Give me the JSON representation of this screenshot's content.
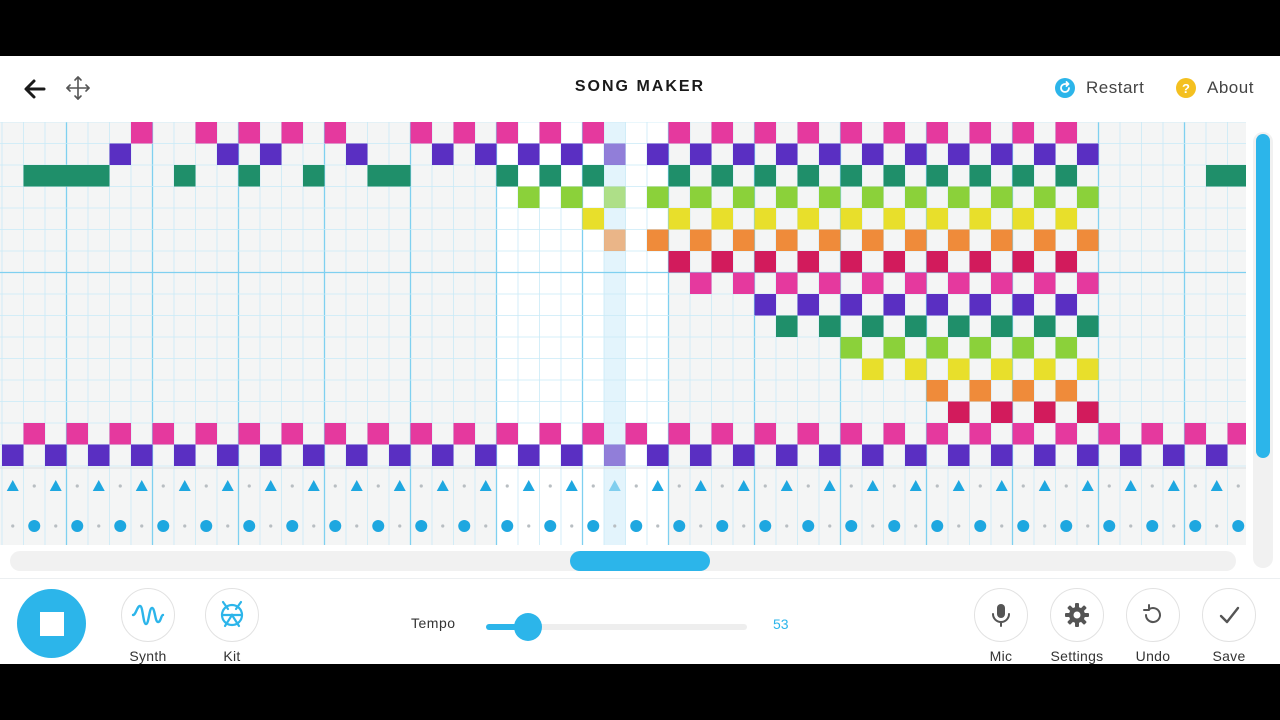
{
  "header": {
    "title": "SONG MAKER",
    "restart_label": "Restart",
    "about_label": "About",
    "about_glyph": "?"
  },
  "colors": {
    "accent": "#2cb5ea",
    "about_icon": "#f4c020",
    "bg_light": "#f4f5f5",
    "bg_white": "#ffffff",
    "grid_line": "#c9eaf7",
    "beat_line": "#7fd0f0",
    "playhead": "#e3f4fc",
    "percussion_mark": "#1ea7e0"
  },
  "melody": {
    "columns": 58,
    "rows": 14,
    "highlight_column": 28,
    "pitch_colors": [
      "#e5399e",
      "#5a2fc2",
      "#1f8f6a",
      "#8bd13a",
      "#e8df2b",
      "#ef8b3a",
      "#d21b5c",
      "#e5399e",
      "#5a2fc2",
      "#1f8f6a",
      "#8bd13a",
      "#e8df2b",
      "#ef8b3a",
      "#d21b5c"
    ],
    "notes": [
      [
        0,
        [
          6,
          9,
          11,
          13,
          15,
          19,
          21,
          23,
          25,
          27,
          31,
          33,
          35,
          37,
          39,
          41,
          43,
          45,
          47,
          49
        ]
      ],
      [
        1,
        [
          5,
          10,
          12,
          16,
          20,
          22,
          24,
          26,
          28,
          30,
          32,
          34,
          36,
          38,
          40,
          42,
          44,
          46,
          48,
          50
        ]
      ],
      [
        2,
        [
          1,
          2,
          3,
          4,
          8,
          11,
          14,
          17,
          18,
          23,
          25,
          27,
          31,
          33,
          35,
          37,
          39,
          41,
          43,
          45,
          47,
          49,
          56,
          57
        ]
      ],
      [
        3,
        [
          24,
          26,
          28,
          30,
          32,
          34,
          36,
          38,
          40,
          42,
          44,
          46,
          48,
          50
        ]
      ],
      [
        4,
        [
          27,
          31,
          33,
          35,
          37,
          39,
          41,
          43,
          45,
          47,
          49
        ]
      ],
      [
        5,
        [
          28,
          30,
          32,
          34,
          36,
          38,
          40,
          42,
          44,
          46,
          48,
          50
        ]
      ],
      [
        6,
        [
          31,
          33,
          35,
          37,
          39,
          41,
          43,
          45,
          47,
          49
        ]
      ],
      [
        7,
        [
          32,
          34,
          36,
          38,
          40,
          42,
          44,
          46,
          48,
          50
        ]
      ],
      [
        8,
        [
          35,
          37,
          39,
          41,
          43,
          45,
          47,
          49
        ]
      ],
      [
        9,
        [
          36,
          38,
          40,
          42,
          44,
          46,
          48,
          50
        ]
      ],
      [
        10,
        [
          39,
          41,
          43,
          45,
          47,
          49
        ]
      ],
      [
        11,
        [
          40,
          42,
          44,
          46,
          48,
          50
        ]
      ],
      [
        12,
        [
          43,
          45,
          47,
          49
        ]
      ],
      [
        13,
        [
          44,
          46,
          48,
          50
        ]
      ]
    ],
    "bass_notes": [
      [
        14,
        "#e5399e",
        [
          1,
          3,
          5,
          7,
          9,
          11,
          13,
          15,
          17,
          19,
          21,
          23,
          25,
          27,
          29,
          31,
          33,
          35,
          37,
          39,
          41,
          43,
          45,
          47,
          49,
          51,
          53,
          55,
          57
        ]
      ],
      [
        15,
        "#5a2fc2",
        [
          0,
          2,
          4,
          6,
          8,
          10,
          12,
          14,
          16,
          18,
          20,
          22,
          24,
          26,
          28,
          30,
          32,
          34,
          36,
          38,
          40,
          42,
          44,
          46,
          48,
          50,
          52,
          54,
          56
        ]
      ]
    ]
  },
  "percussion": {
    "triangle_columns": [
      0,
      2,
      4,
      6,
      8,
      10,
      12,
      14,
      16,
      18,
      20,
      22,
      24,
      26,
      28,
      30,
      32,
      34,
      36,
      38,
      40,
      42,
      44,
      46,
      48,
      50,
      52,
      54,
      56
    ],
    "circle_columns": [
      1,
      3,
      5,
      7,
      9,
      11,
      13,
      15,
      17,
      19,
      21,
      23,
      25,
      27,
      29,
      31,
      33,
      35,
      37,
      39,
      41,
      43,
      45,
      47,
      49,
      51,
      53,
      55,
      57
    ]
  },
  "footer": {
    "synth_label": "Synth",
    "kit_label": "Kit",
    "tempo_label": "Tempo",
    "tempo_value": "53",
    "tempo_fraction": 0.16,
    "mic_label": "Mic",
    "settings_label": "Settings",
    "undo_label": "Undo",
    "save_label": "Save"
  }
}
